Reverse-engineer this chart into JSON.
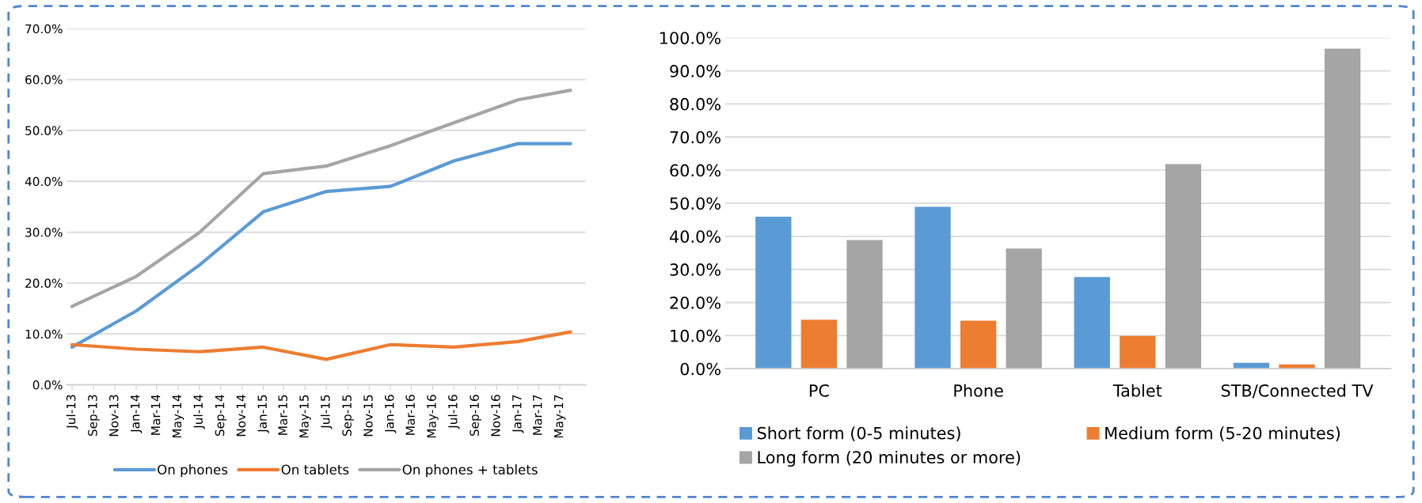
{
  "chart_data": [
    {
      "type": "line",
      "x": [
        "2013-07",
        "2014-01",
        "2014-07",
        "2015-01",
        "2015-07",
        "2016-01",
        "2016-07",
        "2017-01",
        "2017-06"
      ],
      "series": [
        {
          "name": "On phones",
          "color": "#5b9bd5",
          "values": [
            7.4,
            14.5,
            23.5,
            34.0,
            38.0,
            39.0,
            44.0,
            47.4,
            47.4
          ]
        },
        {
          "name": "On tablets",
          "color": "#ed7d31",
          "values": [
            7.9,
            7.0,
            6.5,
            7.4,
            5.0,
            7.9,
            7.4,
            8.5,
            10.4
          ]
        },
        {
          "name": "On phones + tablets",
          "color": "#a5a5a5",
          "values": [
            15.4,
            21.3,
            29.9,
            41.5,
            43.0,
            47.0,
            51.5,
            56.0,
            57.9
          ]
        }
      ],
      "xlim": [
        "2013-06-16",
        "2017-07-15"
      ],
      "xticks": [
        {
          "value": "2013-07",
          "label": "Jul-13"
        },
        {
          "value": "2013-09",
          "label": "Sep-13"
        },
        {
          "value": "2013-11",
          "label": "Nov-13"
        },
        {
          "value": "2014-01",
          "label": "Jan-14"
        },
        {
          "value": "2014-03",
          "label": "Mar-14"
        },
        {
          "value": "2014-05",
          "label": "May-14"
        },
        {
          "value": "2014-07",
          "label": "Jul-14"
        },
        {
          "value": "2014-09",
          "label": "Sep-14"
        },
        {
          "value": "2014-11",
          "label": "Nov-14"
        },
        {
          "value": "2015-01",
          "label": "Jan-15"
        },
        {
          "value": "2015-03",
          "label": "Mar-15"
        },
        {
          "value": "2015-05",
          "label": "May-15"
        },
        {
          "value": "2015-07",
          "label": "Jul-15"
        },
        {
          "value": "2015-09",
          "label": "Sep-15"
        },
        {
          "value": "2015-11",
          "label": "Nov-15"
        },
        {
          "value": "2016-01",
          "label": "Jan-16"
        },
        {
          "value": "2016-03",
          "label": "Mar-16"
        },
        {
          "value": "2016-05",
          "label": "May-16"
        },
        {
          "value": "2016-07",
          "label": "Jul-16"
        },
        {
          "value": "2016-09",
          "label": "Sep-16"
        },
        {
          "value": "2016-11",
          "label": "Nov-16"
        },
        {
          "value": "2017-01",
          "label": "Jan-17"
        },
        {
          "value": "2017-03",
          "label": "Mar-17"
        },
        {
          "value": "2017-05",
          "label": "May-17"
        }
      ],
      "ylim": [
        0,
        70
      ],
      "yticks": [
        {
          "value": 0,
          "label": "0.0%"
        },
        {
          "value": 10,
          "label": "10.0%"
        },
        {
          "value": 20,
          "label": "20.0%"
        },
        {
          "value": 30,
          "label": "30.0%"
        },
        {
          "value": 40,
          "label": "40.0%"
        },
        {
          "value": 50,
          "label": "50.0%"
        },
        {
          "value": 60,
          "label": "60.0%"
        },
        {
          "value": 70,
          "label": "70.0%"
        }
      ],
      "grid": "y",
      "legend": "bottom",
      "marker": "none",
      "line_style": "solid"
    },
    {
      "type": "bar",
      "categories": [
        "PC",
        "Phone",
        "Tablet",
        "STB/Connected TV"
      ],
      "series": [
        {
          "name": "Short form (0-5 minutes)",
          "color": "#5b9bd5",
          "values": [
            45.9,
            48.9,
            27.7,
            1.8
          ]
        },
        {
          "name": "Medium form (5-20 minutes)",
          "color": "#ed7d31",
          "values": [
            14.8,
            14.5,
            9.9,
            1.3
          ]
        },
        {
          "name": "Long form (20 minutes or more)",
          "color": "#a5a5a5",
          "values": [
            38.9,
            36.3,
            61.8,
            96.7
          ]
        }
      ],
      "ylim": [
        0,
        100
      ],
      "yticks": [
        {
          "value": 0,
          "label": "0.0%"
        },
        {
          "value": 10,
          "label": "10.0%"
        },
        {
          "value": 20,
          "label": "20.0%"
        },
        {
          "value": 30,
          "label": "30.0%"
        },
        {
          "value": 40,
          "label": "40.0%"
        },
        {
          "value": 50,
          "label": "50.0%"
        },
        {
          "value": 60,
          "label": "60.0%"
        },
        {
          "value": 70,
          "label": "70.0%"
        },
        {
          "value": 80,
          "label": "80.0%"
        },
        {
          "value": 90,
          "label": "90.0%"
        },
        {
          "value": 100,
          "label": "100.0%"
        }
      ],
      "grid": "y",
      "legend": "bottom"
    }
  ]
}
